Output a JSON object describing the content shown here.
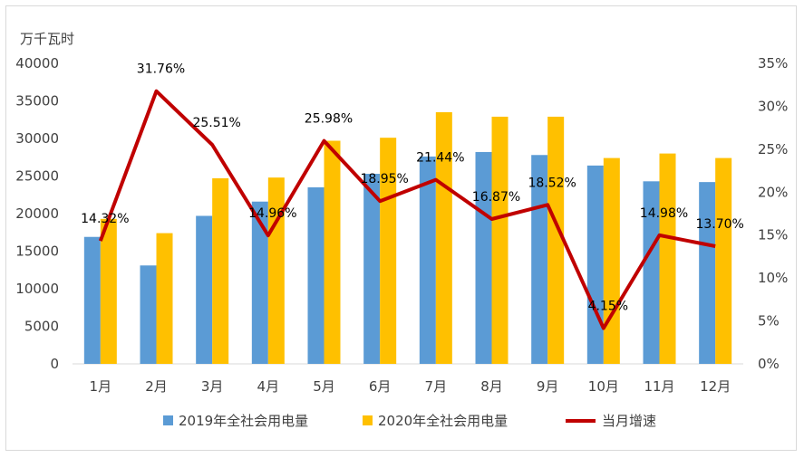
{
  "chart_data": {
    "type": "bar",
    "y_unit_label": "万千瓦时",
    "categories": [
      "1月",
      "2月",
      "3月",
      "4月",
      "5月",
      "6月",
      "7月",
      "8月",
      "9月",
      "10月",
      "11月",
      "12月"
    ],
    "series": [
      {
        "name": "2019年全社会用电量",
        "type": "bar",
        "axis": "left",
        "color": "#5b9bd5",
        "values": [
          16900,
          13100,
          19700,
          21600,
          23500,
          25300,
          27600,
          28200,
          27800,
          26400,
          24300,
          24200
        ]
      },
      {
        "name": "2020年全社会用电量",
        "type": "bar",
        "axis": "left",
        "color": "#ffc000",
        "values": [
          19300,
          17400,
          24700,
          24800,
          29700,
          30100,
          33500,
          32900,
          32900,
          27400,
          28000,
          27400
        ]
      },
      {
        "name": "当月增速",
        "type": "line",
        "axis": "right",
        "color": "#c00000",
        "values": [
          14.32,
          31.76,
          25.51,
          14.96,
          25.98,
          18.95,
          21.44,
          16.87,
          18.52,
          4.15,
          14.98,
          13.7
        ],
        "labels": [
          "14.32%",
          "31.76%",
          "25.51%",
          "14.96%",
          "25.98%",
          "18.95%",
          "21.44%",
          "16.87%",
          "18.52%",
          "4.15%",
          "14.98%",
          "13.70%"
        ]
      }
    ],
    "ylim": [
      0,
      40000
    ],
    "y_ticks": [
      "0",
      "5000",
      "10000",
      "15000",
      "20000",
      "25000",
      "30000",
      "35000",
      "40000"
    ],
    "y2lim": [
      0,
      35
    ],
    "y2_ticks": [
      "0%",
      "5%",
      "10%",
      "15%",
      "20%",
      "25%",
      "30%",
      "35%"
    ],
    "grid": false,
    "legend": "bottom"
  }
}
